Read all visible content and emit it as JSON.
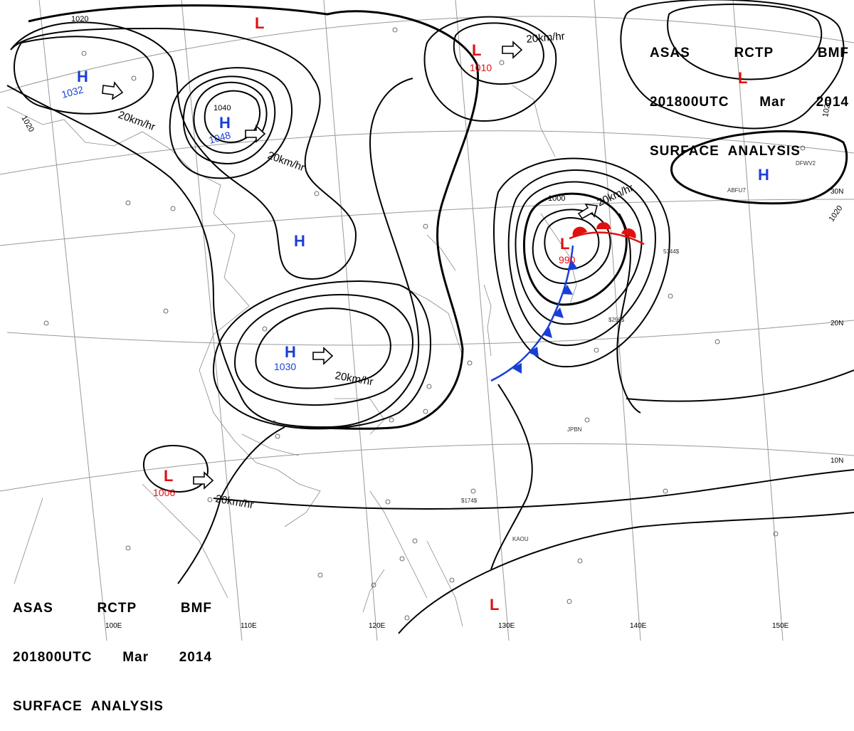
{
  "header": {
    "line1": [
      "ASAS",
      "RCTP",
      "BMF"
    ],
    "line2": [
      "201800UTC",
      "Mar",
      "2014"
    ],
    "line3": "SURFACE  ANALYSIS"
  },
  "pressure_centers": [
    {
      "type": "H",
      "value": "1032",
      "vec": "20km/hr"
    },
    {
      "type": "H",
      "value": "1048",
      "vec": "20km/hr"
    },
    {
      "type": "H",
      "value": "1030",
      "vec": "20km/hr"
    },
    {
      "type": "H",
      "value": ""
    },
    {
      "type": "H",
      "value": ""
    },
    {
      "type": "L",
      "value": "1010",
      "vec": "20km/hr"
    },
    {
      "type": "L",
      "value": "990",
      "vec": "20km/hr"
    },
    {
      "type": "L",
      "value": "1006",
      "vec": "20km/hr"
    },
    {
      "type": "L",
      "value": ""
    },
    {
      "type": "L",
      "value": ""
    },
    {
      "type": "L",
      "value": ""
    }
  ],
  "isobar_labels": [
    "1020",
    "1020",
    "1040",
    "1000",
    "1020",
    "1020"
  ],
  "grid_labels": {
    "lon": [
      "100E",
      "110E",
      "120E",
      "130E",
      "140E",
      "150E"
    ],
    "lat": [
      "30N",
      "20N",
      "10N"
    ]
  },
  "stations": [
    {
      "id": "ABFU7"
    },
    {
      "id": "DFWV2"
    },
    {
      "id": "5344$"
    },
    {
      "id": "JPBN"
    },
    {
      "id": "KAOU"
    },
    {
      "id": "$296$"
    },
    {
      "id": "$174$"
    }
  ],
  "colors": {
    "high": "#1a3fd6",
    "low": "#e01010",
    "warm_front": "#e01010",
    "cold_front": "#1a3fd6",
    "isobar": "#000000",
    "coast": "#888888",
    "grid": "#999999"
  },
  "chart_data": {
    "type": "surface-analysis-map",
    "title": "ASAS RCTP BMF 201800UTC Mar 2014 SURFACE ANALYSIS",
    "centers": [
      {
        "type": "H",
        "pressure_hPa": 1032,
        "movement": "20km/hr"
      },
      {
        "type": "H",
        "pressure_hPa": 1048,
        "movement": "20km/hr"
      },
      {
        "type": "H",
        "pressure_hPa": 1030,
        "movement": "20km/hr"
      },
      {
        "type": "L",
        "pressure_hPa": 1010,
        "movement": "20km/hr"
      },
      {
        "type": "L",
        "pressure_hPa": 990,
        "movement": "20km/hr"
      },
      {
        "type": "L",
        "pressure_hPa": 1006,
        "movement": "20km/hr"
      }
    ],
    "fronts": [
      "warm",
      "cold"
    ]
  }
}
